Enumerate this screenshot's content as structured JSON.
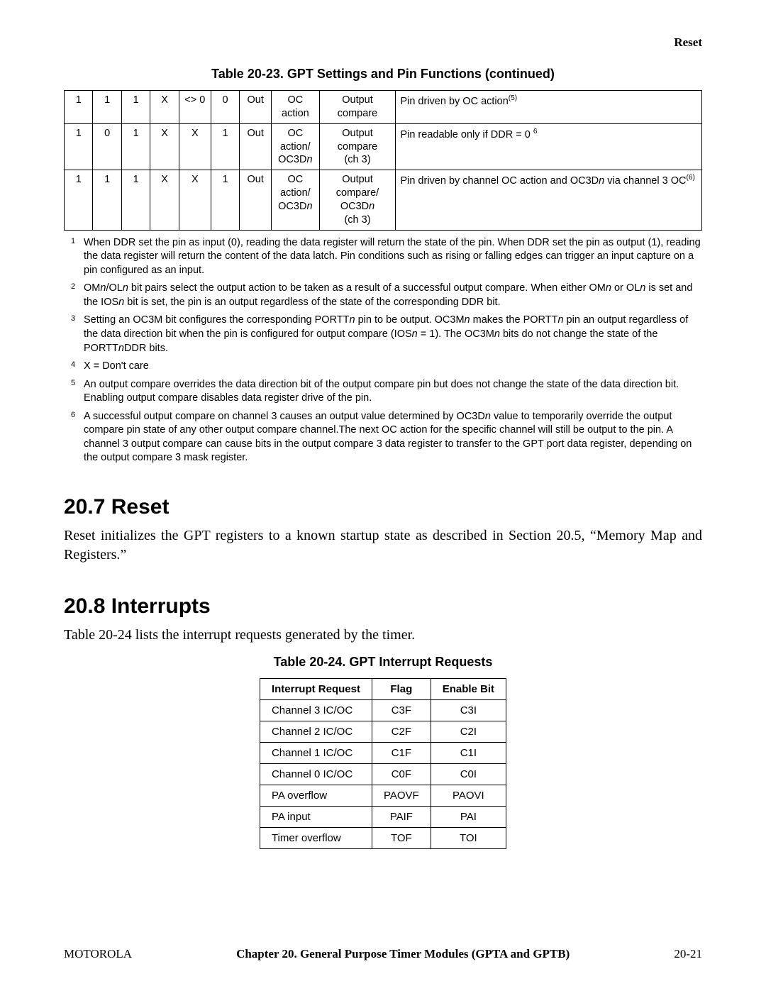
{
  "header_right": "Reset",
  "caption1": "Table 20-23. GPT Settings and Pin Functions (continued)",
  "settings_rows": [
    {
      "c0": "1",
      "c1": "1",
      "c2": "1",
      "c3": "X",
      "c4": "<> 0",
      "c5": "0",
      "c6": "Out",
      "c7": "OC action",
      "c8": "Output compare",
      "c9_html": "Pin driven by OC action<span class='sup'>(5)</span>"
    },
    {
      "c0": "1",
      "c1": "0",
      "c2": "1",
      "c3": "X",
      "c4": "X",
      "c5": "1",
      "c6": "Out",
      "c7_html": "OC action/<br>OC3D<em class='i'>n</em>",
      "c8_html": "Output compare<br>(ch 3)",
      "c9_html": "Pin readable only if DDR = 0 <span class='sup'>6</span>"
    },
    {
      "c0": "1",
      "c1": "1",
      "c2": "1",
      "c3": "X",
      "c4": "X",
      "c5": "1",
      "c6": "Out",
      "c7_html": "OC action/<br>OC3D<em class='i'>n</em>",
      "c8_html": "Output compare/<br>OC3D<em class='i'>n</em><br>(ch 3)",
      "c9_html": "Pin driven by channel OC action and OC3D<em class='i'>n</em> via channel 3 OC<span class='sup'>(6)</span>"
    }
  ],
  "footnotes": [
    {
      "n": "1",
      "html": "When DDR set the pin as input (0), reading the data register will return the state of the pin. When DDR set the pin as output (1), reading the data register will return the content of the data latch. Pin conditions such as rising or falling edges can trigger an input capture on a pin configured as an input."
    },
    {
      "n": "2",
      "html": "OM<em class='i'>n</em>/OL<em class='i'>n</em> bit pairs select the output action to be taken as a result of a successful output compare. When either OM<em class='i'>n</em> or OL<em class='i'>n</em> is set and the IOS<em class='i'>n</em> bit is set, the pin is an output regardless of the state of the corresponding DDR bit."
    },
    {
      "n": "3",
      "html": "Setting an OC3M bit configures the corresponding PORTT<em class='i'>n</em> pin to be output. OC3M<em class='i'>n</em> makes the PORTT<em class='i'>n</em> pin an output regardless of the data direction bit when the pin is configured for output compare (IOS<em class='i'>n</em> = 1). The OC3M<em class='i'>n</em> bits do not change the state of the PORTT<em class='i'>n</em>DDR bits."
    },
    {
      "n": "4",
      "html": "X = Don't care"
    },
    {
      "n": "5",
      "html": "An output compare overrides the data direction bit of the output compare pin but does not change the state of the data direction bit. Enabling output compare disables data register drive of the pin."
    },
    {
      "n": "6",
      "html": "A successful output compare on channel 3 causes an output value determined by OC3D<em class='i'>n</em> value to temporarily override the output compare pin state of any other output compare channel.The next OC action for the specific channel will still be output to the pin. A channel 3 output compare can cause bits in the output compare 3 data register to transfer to the GPT port data register, depending on the output compare 3 mask register."
    }
  ],
  "sec1_title": "20.7  Reset",
  "sec1_body": "Reset initializes the GPT registers to a known startup state as described in Section 20.5, “Memory Map and Registers.”",
  "sec2_title": "20.8  Interrupts",
  "sec2_body": "Table 20-24 lists the interrupt requests generated by the timer.",
  "caption2": "Table 20-24. GPT Interrupt Requests",
  "irq_headers": [
    "Interrupt Request",
    "Flag",
    "Enable Bit"
  ],
  "irq_rows": [
    [
      "Channel 3 IC/OC",
      "C3F",
      "C3I"
    ],
    [
      "Channel 2 IC/OC",
      "C2F",
      "C2I"
    ],
    [
      "Channel 1 IC/OC",
      "C1F",
      "C1I"
    ],
    [
      "Channel 0 IC/OC",
      "C0F",
      "C0I"
    ],
    [
      "PA overflow",
      "PAOVF",
      "PAOVI"
    ],
    [
      "PA input",
      "PAIF",
      "PAI"
    ],
    [
      "Timer overflow",
      "TOF",
      "TOI"
    ]
  ],
  "footer_left": "MOTOROLA",
  "footer_center": "Chapter 20.  General Purpose Timer Modules (GPTA and GPTB)",
  "footer_right": "20-21"
}
